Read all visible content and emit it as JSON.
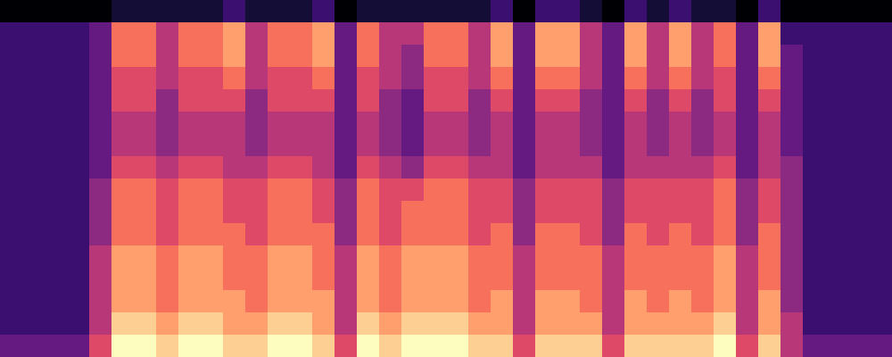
{
  "chart_data": {
    "type": "heatmap",
    "tick_labels": false,
    "color": "magma",
    "zlim": [
      0,
      10
    ],
    "cells": [
      [
        0,
        0,
        0,
        0,
        0,
        1,
        1,
        1,
        1,
        1,
        2,
        1,
        1,
        1,
        2,
        0,
        1,
        1,
        1,
        1,
        1,
        1,
        2,
        0,
        2,
        2,
        1,
        0,
        2,
        1,
        2,
        1,
        1,
        0,
        2,
        0,
        0,
        0,
        0,
        0
      ],
      [
        2,
        2,
        2,
        2,
        3,
        7,
        7,
        5,
        7,
        7,
        8,
        5,
        7,
        7,
        8,
        3,
        7,
        5,
        5,
        7,
        7,
        5,
        8,
        3,
        8,
        8,
        5,
        3,
        8,
        5,
        8,
        5,
        7,
        3,
        8,
        2,
        2,
        2,
        2,
        2
      ],
      [
        2,
        2,
        2,
        2,
        3,
        7,
        7,
        5,
        7,
        7,
        8,
        5,
        7,
        7,
        8,
        3,
        7,
        5,
        4,
        7,
        7,
        5,
        8,
        3,
        8,
        8,
        5,
        3,
        8,
        5,
        8,
        5,
        7,
        3,
        8,
        3,
        2,
        2,
        2,
        2
      ],
      [
        2,
        2,
        2,
        2,
        3,
        6,
        6,
        5,
        6,
        6,
        7,
        5,
        6,
        6,
        7,
        3,
        6,
        5,
        4,
        6,
        6,
        5,
        7,
        3,
        7,
        7,
        5,
        3,
        7,
        5,
        7,
        5,
        6,
        3,
        7,
        3,
        2,
        2,
        2,
        2
      ],
      [
        2,
        2,
        2,
        2,
        3,
        6,
        6,
        4,
        6,
        6,
        6,
        4,
        6,
        6,
        6,
        3,
        6,
        4,
        3,
        6,
        6,
        4,
        6,
        3,
        6,
        6,
        4,
        3,
        6,
        4,
        6,
        4,
        6,
        3,
        6,
        3,
        2,
        2,
        2,
        2
      ],
      [
        2,
        2,
        2,
        2,
        3,
        5,
        5,
        4,
        5,
        5,
        5,
        4,
        5,
        5,
        5,
        3,
        5,
        4,
        3,
        5,
        5,
        4,
        5,
        3,
        5,
        5,
        4,
        3,
        5,
        4,
        5,
        4,
        5,
        3,
        5,
        3,
        2,
        2,
        2,
        2
      ],
      [
        2,
        2,
        2,
        2,
        3,
        5,
        5,
        4,
        5,
        5,
        5,
        4,
        5,
        5,
        5,
        3,
        5,
        4,
        3,
        5,
        5,
        4,
        5,
        3,
        5,
        5,
        4,
        3,
        5,
        4,
        5,
        4,
        5,
        3,
        5,
        3,
        2,
        2,
        2,
        2
      ],
      [
        2,
        2,
        2,
        2,
        3,
        6,
        6,
        5,
        6,
        6,
        5,
        5,
        6,
        6,
        5,
        3,
        6,
        5,
        4,
        6,
        6,
        5,
        5,
        3,
        5,
        5,
        5,
        3,
        5,
        5,
        5,
        5,
        6,
        3,
        5,
        4,
        2,
        2,
        2,
        2
      ],
      [
        2,
        2,
        2,
        2,
        4,
        7,
        7,
        6,
        7,
        7,
        6,
        6,
        7,
        7,
        6,
        4,
        7,
        6,
        6,
        7,
        7,
        6,
        6,
        4,
        6,
        6,
        6,
        4,
        6,
        6,
        6,
        6,
        7,
        4,
        6,
        4,
        2,
        2,
        2,
        2
      ],
      [
        2,
        2,
        2,
        2,
        4,
        7,
        7,
        6,
        7,
        7,
        6,
        6,
        7,
        7,
        6,
        4,
        7,
        6,
        7,
        7,
        7,
        6,
        6,
        4,
        6,
        6,
        6,
        4,
        6,
        6,
        6,
        6,
        7,
        4,
        6,
        4,
        2,
        2,
        2,
        2
      ],
      [
        2,
        2,
        2,
        2,
        4,
        7,
        7,
        6,
        7,
        7,
        7,
        6,
        7,
        7,
        7,
        4,
        7,
        6,
        7,
        7,
        7,
        6,
        7,
        4,
        7,
        7,
        6,
        4,
        7,
        6,
        7,
        6,
        7,
        4,
        7,
        4,
        2,
        2,
        2,
        2
      ],
      [
        2,
        2,
        2,
        2,
        5,
        8,
        8,
        7,
        8,
        8,
        7,
        7,
        8,
        8,
        7,
        5,
        8,
        7,
        8,
        8,
        8,
        7,
        7,
        5,
        7,
        7,
        7,
        5,
        7,
        7,
        7,
        7,
        8,
        5,
        7,
        4,
        2,
        2,
        2,
        2
      ],
      [
        2,
        2,
        2,
        2,
        5,
        8,
        8,
        7,
        8,
        8,
        7,
        7,
        8,
        8,
        7,
        5,
        8,
        7,
        8,
        8,
        8,
        7,
        7,
        5,
        7,
        7,
        7,
        5,
        7,
        7,
        7,
        7,
        8,
        5,
        7,
        4,
        2,
        2,
        2,
        2
      ],
      [
        2,
        2,
        2,
        2,
        5,
        8,
        8,
        7,
        8,
        8,
        8,
        7,
        8,
        8,
        8,
        5,
        8,
        7,
        8,
        8,
        8,
        7,
        8,
        5,
        8,
        8,
        7,
        5,
        8,
        7,
        8,
        7,
        8,
        5,
        8,
        4,
        2,
        2,
        2,
        2
      ],
      [
        2,
        2,
        2,
        2,
        5,
        9,
        9,
        8,
        9,
        9,
        8,
        8,
        9,
        9,
        8,
        5,
        9,
        8,
        9,
        9,
        9,
        8,
        8,
        5,
        8,
        8,
        8,
        5,
        8,
        8,
        8,
        8,
        9,
        5,
        8,
        5,
        2,
        2,
        2,
        2
      ],
      [
        3,
        3,
        3,
        3,
        6,
        10,
        10,
        9,
        10,
        10,
        9,
        9,
        10,
        10,
        9,
        6,
        10,
        9,
        10,
        10,
        10,
        9,
        9,
        6,
        9,
        9,
        9,
        6,
        9,
        9,
        9,
        9,
        10,
        6,
        9,
        5,
        3,
        3,
        3,
        3
      ]
    ]
  }
}
